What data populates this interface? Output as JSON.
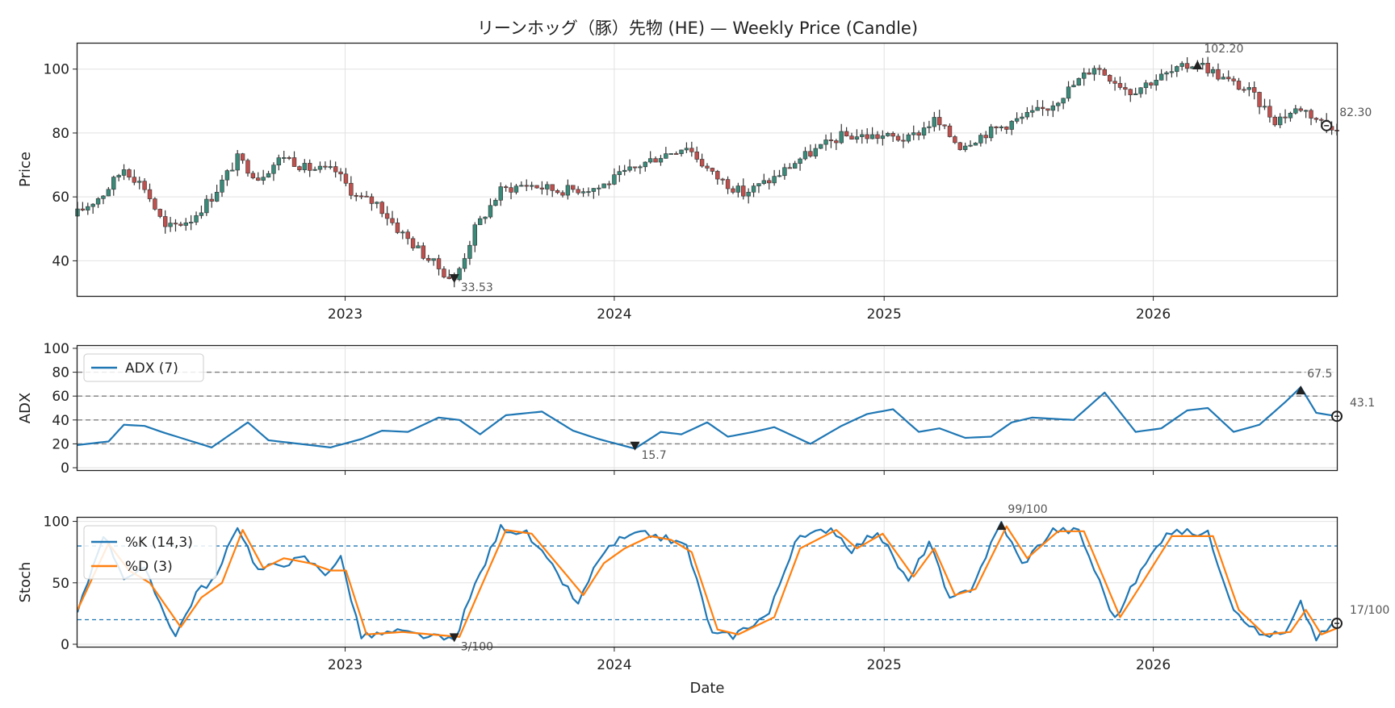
{
  "title": "リーンホッグ（豚）先物 (HE) — Weekly Price (Candle)",
  "colors": {
    "up": "#3a8a7a",
    "down": "#c0504d",
    "wick": "#333333",
    "adx": "#1f77b4",
    "k": "#1f77b4",
    "d": "#ff7f0e",
    "ref": "#7f7f7f",
    "stochref": "#1f77b4"
  },
  "chart_data": [
    {
      "type": "candlestick",
      "ylabel": "Price",
      "x_range": [
        "2022-01-03",
        "2026-09-07"
      ],
      "ylim": [
        29,
        108
      ],
      "yticks": [
        40,
        60,
        80,
        100
      ],
      "xticks": [
        "2023",
        "2024",
        "2025",
        "2026"
      ],
      "grid": true,
      "close_anchors": [
        [
          "2022-01-03",
          55
        ],
        [
          "2022-02-07",
          61
        ],
        [
          "2022-03-07",
          69
        ],
        [
          "2022-04-04",
          63
        ],
        [
          "2022-05-02",
          50
        ],
        [
          "2022-06-06",
          53
        ],
        [
          "2022-07-04",
          60
        ],
        [
          "2022-08-08",
          72
        ],
        [
          "2022-09-05",
          66
        ],
        [
          "2022-10-10",
          73
        ],
        [
          "2022-11-07",
          69
        ],
        [
          "2022-12-19",
          68
        ],
        [
          "2023-01-16",
          60
        ],
        [
          "2023-02-13",
          58
        ],
        [
          "2023-03-13",
          50
        ],
        [
          "2023-04-17",
          42
        ],
        [
          "2023-05-29",
          33.5
        ],
        [
          "2023-06-26",
          50
        ],
        [
          "2023-07-31",
          62
        ],
        [
          "2023-09-04",
          64
        ],
        [
          "2023-10-16",
          62
        ],
        [
          "2023-12-11",
          63
        ],
        [
          "2024-02-05",
          70
        ],
        [
          "2024-03-04",
          73
        ],
        [
          "2024-04-08",
          76
        ],
        [
          "2024-05-13",
          67
        ],
        [
          "2024-06-24",
          61
        ],
        [
          "2024-08-05",
          66
        ],
        [
          "2024-09-09",
          72
        ],
        [
          "2024-11-04",
          79
        ],
        [
          "2024-12-30",
          79
        ],
        [
          "2025-02-03",
          78
        ],
        [
          "2025-03-10",
          84
        ],
        [
          "2025-04-14",
          76
        ],
        [
          "2025-05-19",
          80
        ],
        [
          "2025-06-30",
          84
        ],
        [
          "2025-08-11",
          88
        ],
        [
          "2025-09-15",
          95
        ],
        [
          "2025-10-13",
          101
        ],
        [
          "2025-12-01",
          93
        ],
        [
          "2026-01-05",
          97
        ],
        [
          "2026-03-02",
          102.2
        ],
        [
          "2026-04-06",
          97
        ],
        [
          "2026-05-11",
          93
        ],
        [
          "2026-06-15",
          84
        ],
        [
          "2026-07-20",
          88
        ],
        [
          "2026-08-24",
          82.3
        ]
      ],
      "annotations": [
        {
          "date": "2023-05-29",
          "value": 33.53,
          "label": "33.53",
          "marker": "low"
        },
        {
          "date": "2026-03-02",
          "value": 102.2,
          "label": "102.20",
          "marker": "high"
        },
        {
          "date": "2026-08-24",
          "value": 82.3,
          "label": "82.30",
          "marker": "last"
        }
      ]
    },
    {
      "type": "line",
      "ylabel": "ADX",
      "ylim": [
        -2,
        102
      ],
      "yticks": [
        0,
        20,
        40,
        60,
        80,
        100
      ],
      "ref_lines": [
        20,
        40,
        60,
        80
      ],
      "series": [
        {
          "name": "ADX (7)",
          "anchors": [
            [
              "2022-01-03",
              19
            ],
            [
              "2022-02-14",
              22
            ],
            [
              "2022-03-07",
              36
            ],
            [
              "2022-04-04",
              35
            ],
            [
              "2022-05-02",
              29
            ],
            [
              "2022-06-13",
              21
            ],
            [
              "2022-07-04",
              17
            ],
            [
              "2022-08-22",
              38
            ],
            [
              "2022-09-19",
              23
            ],
            [
              "2022-10-31",
              20
            ],
            [
              "2022-12-12",
              17
            ],
            [
              "2023-01-23",
              24
            ],
            [
              "2023-02-20",
              31
            ],
            [
              "2023-03-27",
              30
            ],
            [
              "2023-05-08",
              42
            ],
            [
              "2023-06-05",
              40
            ],
            [
              "2023-07-03",
              28
            ],
            [
              "2023-08-07",
              44
            ],
            [
              "2023-09-25",
              47
            ],
            [
              "2023-11-06",
              31
            ],
            [
              "2023-12-11",
              24
            ],
            [
              "2024-01-29",
              16
            ],
            [
              "2024-03-04",
              30
            ],
            [
              "2024-04-01",
              28
            ],
            [
              "2024-05-06",
              38
            ],
            [
              "2024-06-03",
              26
            ],
            [
              "2024-07-08",
              30
            ],
            [
              "2024-08-05",
              34
            ],
            [
              "2024-09-23",
              20
            ],
            [
              "2024-11-04",
              35
            ],
            [
              "2024-12-09",
              45
            ],
            [
              "2025-01-13",
              49
            ],
            [
              "2025-02-17",
              30
            ],
            [
              "2025-03-17",
              33
            ],
            [
              "2025-04-21",
              25
            ],
            [
              "2025-05-26",
              26
            ],
            [
              "2025-06-23",
              38
            ],
            [
              "2025-07-21",
              42
            ],
            [
              "2025-09-15",
              40
            ],
            [
              "2025-10-27",
              63
            ],
            [
              "2025-12-08",
              30
            ],
            [
              "2026-01-12",
              33
            ],
            [
              "2026-02-16",
              48
            ],
            [
              "2026-03-16",
              50
            ],
            [
              "2026-04-20",
              30
            ],
            [
              "2026-05-25",
              36
            ],
            [
              "2026-06-29",
              55
            ],
            [
              "2026-07-20",
              67.5
            ],
            [
              "2026-08-10",
              46
            ],
            [
              "2026-09-07",
              43.1
            ]
          ]
        }
      ],
      "annotations": [
        {
          "date": "2024-01-29",
          "value": 15.7,
          "label": "15.7",
          "marker": "low"
        },
        {
          "date": "2026-07-20",
          "value": 67.5,
          "label": "67.5",
          "marker": "high"
        },
        {
          "date": "2026-09-07",
          "value": 43.1,
          "label": "43.1",
          "marker": "last"
        }
      ]
    },
    {
      "type": "line",
      "ylabel": "Stoch",
      "xlabel": "Date",
      "ylim": [
        -2,
        103
      ],
      "yticks": [
        0,
        50,
        100
      ],
      "xticks": [
        "2023",
        "2024",
        "2025",
        "2026"
      ],
      "ref_lines": [
        20,
        80
      ],
      "series": [
        {
          "name": "%K (14,3)",
          "anchors": [
            [
              "2022-01-03",
              25
            ],
            [
              "2022-02-07",
              90
            ],
            [
              "2022-03-07",
              55
            ],
            [
              "2022-04-04",
              60
            ],
            [
              "2022-05-16",
              7
            ],
            [
              "2022-06-13",
              42
            ],
            [
              "2022-07-11",
              55
            ],
            [
              "2022-08-08",
              97
            ],
            [
              "2022-09-05",
              60
            ],
            [
              "2022-10-03",
              65
            ],
            [
              "2022-11-07",
              70
            ],
            [
              "2022-12-05",
              58
            ],
            [
              "2022-12-26",
              70
            ],
            [
              "2023-01-23",
              6
            ],
            [
              "2023-03-13",
              10
            ],
            [
              "2023-05-29",
              3
            ],
            [
              "2023-06-26",
              48
            ],
            [
              "2023-07-31",
              95
            ],
            [
              "2023-09-04",
              90
            ],
            [
              "2023-10-16",
              57
            ],
            [
              "2023-11-13",
              32
            ],
            [
              "2023-12-11",
              70
            ],
            [
              "2024-01-08",
              85
            ],
            [
              "2024-02-12",
              90
            ],
            [
              "2024-03-11",
              86
            ],
            [
              "2024-04-08",
              80
            ],
            [
              "2024-05-13",
              8
            ],
            [
              "2024-06-10",
              7
            ],
            [
              "2024-07-29",
              25
            ],
            [
              "2024-09-02",
              84
            ],
            [
              "2024-10-21",
              95
            ],
            [
              "2024-11-18",
              77
            ],
            [
              "2024-12-23",
              92
            ],
            [
              "2025-02-03",
              50
            ],
            [
              "2025-03-03",
              84
            ],
            [
              "2025-03-31",
              35
            ],
            [
              "2025-04-28",
              45
            ],
            [
              "2025-06-09",
              99
            ],
            [
              "2025-07-07",
              65
            ],
            [
              "2025-08-18",
              93
            ],
            [
              "2025-09-22",
              92
            ],
            [
              "2025-11-10",
              20
            ],
            [
              "2025-12-08",
              52
            ],
            [
              "2026-01-19",
              92
            ],
            [
              "2026-03-16",
              90
            ],
            [
              "2026-04-20",
              30
            ],
            [
              "2026-05-25",
              8
            ],
            [
              "2026-06-29",
              8
            ],
            [
              "2026-07-20",
              33
            ],
            [
              "2026-08-10",
              5
            ],
            [
              "2026-09-07",
              17
            ]
          ]
        },
        {
          "name": "%D (3)",
          "anchors": [
            [
              "2022-01-03",
              28
            ],
            [
              "2022-02-14",
              82
            ],
            [
              "2022-03-14",
              60
            ],
            [
              "2022-04-11",
              50
            ],
            [
              "2022-05-23",
              14
            ],
            [
              "2022-06-20",
              38
            ],
            [
              "2022-07-18",
              50
            ],
            [
              "2022-08-15",
              93
            ],
            [
              "2022-09-12",
              62
            ],
            [
              "2022-10-10",
              70
            ],
            [
              "2022-11-14",
              66
            ],
            [
              "2022-12-12",
              60
            ],
            [
              "2023-01-02",
              60
            ],
            [
              "2023-01-30",
              8
            ],
            [
              "2023-03-20",
              10
            ],
            [
              "2023-06-05",
              6
            ],
            [
              "2023-07-03",
              45
            ],
            [
              "2023-08-07",
              93
            ],
            [
              "2023-09-11",
              90
            ],
            [
              "2023-10-23",
              60
            ],
            [
              "2023-11-20",
              40
            ],
            [
              "2023-12-18",
              66
            ],
            [
              "2024-01-15",
              78
            ],
            [
              "2024-02-19",
              88
            ],
            [
              "2024-03-18",
              85
            ],
            [
              "2024-04-15",
              75
            ],
            [
              "2024-05-20",
              12
            ],
            [
              "2024-06-17",
              8
            ],
            [
              "2024-08-05",
              22
            ],
            [
              "2024-09-09",
              78
            ],
            [
              "2024-10-28",
              93
            ],
            [
              "2024-11-25",
              78
            ],
            [
              "2024-12-30",
              90
            ],
            [
              "2025-02-10",
              55
            ],
            [
              "2025-03-10",
              78
            ],
            [
              "2025-04-07",
              40
            ],
            [
              "2025-05-05",
              45
            ],
            [
              "2025-06-16",
              96
            ],
            [
              "2025-07-14",
              70
            ],
            [
              "2025-08-25",
              92
            ],
            [
              "2025-09-29",
              92
            ],
            [
              "2025-11-17",
              22
            ],
            [
              "2025-12-15",
              48
            ],
            [
              "2026-01-26",
              88
            ],
            [
              "2026-03-23",
              88
            ],
            [
              "2026-04-27",
              28
            ],
            [
              "2026-06-01",
              8
            ],
            [
              "2026-07-06",
              10
            ],
            [
              "2026-07-27",
              28
            ],
            [
              "2026-08-17",
              8
            ],
            [
              "2026-09-07",
              13
            ]
          ]
        }
      ],
      "annotations": [
        {
          "date": "2023-05-29",
          "value": 3,
          "label": "3/100",
          "marker": "low"
        },
        {
          "date": "2025-06-09",
          "value": 99,
          "label": "99/100",
          "marker": "high"
        },
        {
          "date": "2026-09-07",
          "value": 17,
          "label": "17/100",
          "marker": "last"
        }
      ]
    }
  ]
}
